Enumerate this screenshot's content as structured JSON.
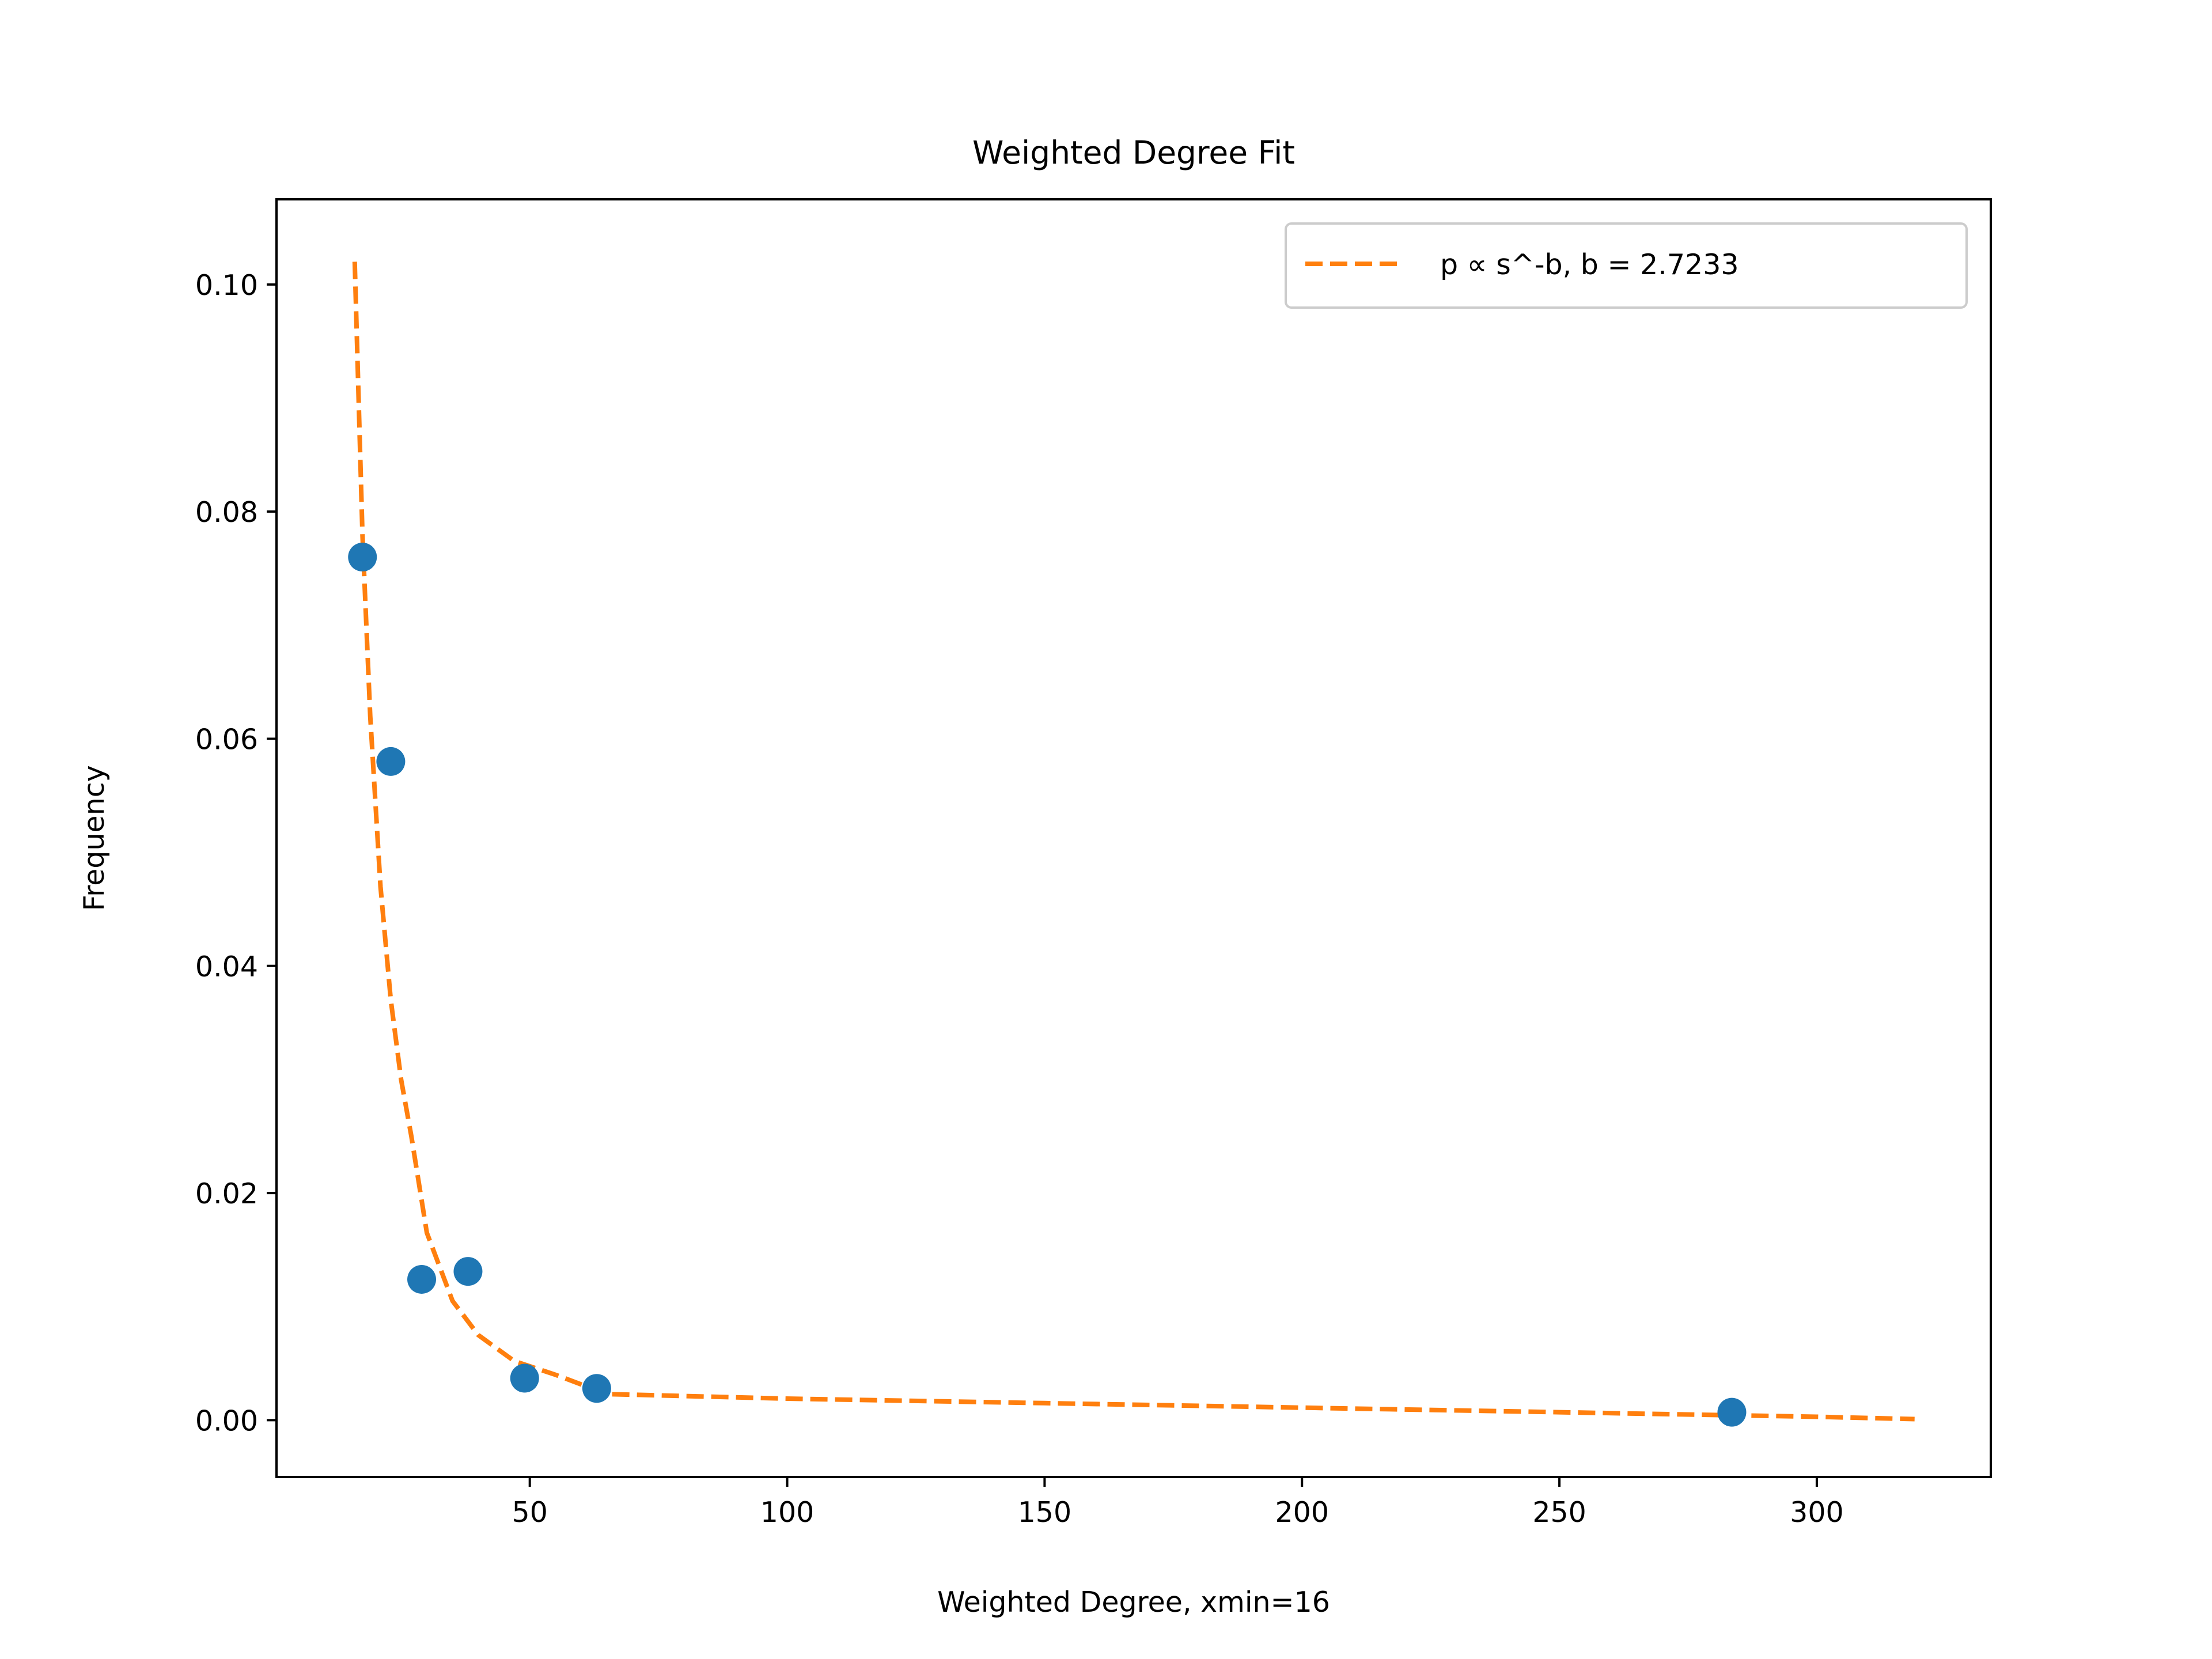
{
  "chart_data": {
    "type": "scatter",
    "title": "Weighted Degree Fit",
    "xlabel": "Weighted Degree, xmin=16",
    "ylabel": "Frequency",
    "xlim": [
      0.8,
      333.8
    ],
    "ylim": [
      -0.005,
      0.1075
    ],
    "x_ticks": [
      50,
      100,
      150,
      200,
      250,
      300
    ],
    "x_tick_labels": [
      "50",
      "100",
      "150",
      "200",
      "250",
      "300"
    ],
    "y_ticks": [
      0.0,
      0.02,
      0.04,
      0.06,
      0.08,
      0.1
    ],
    "y_tick_labels": [
      "0.00",
      "0.02",
      "0.04",
      "0.06",
      "0.08",
      "0.10"
    ],
    "grid": false,
    "legend_position": "top-right",
    "series": [
      {
        "kind": "scatter",
        "color": "#1f77b4",
        "points": [
          {
            "x": 17.5,
            "y": 0.076
          },
          {
            "x": 23,
            "y": 0.058
          },
          {
            "x": 29,
            "y": 0.0124
          },
          {
            "x": 38,
            "y": 0.0131
          },
          {
            "x": 49,
            "y": 0.0037
          },
          {
            "x": 63,
            "y": 0.0028
          },
          {
            "x": 283.5,
            "y": 0.0007
          }
        ]
      },
      {
        "kind": "line",
        "name": "p ∝ s^-b, b = 2.7233",
        "color": "#ff7f0e",
        "dashed": true,
        "points": [
          {
            "x": 16,
            "y": 0.102
          },
          {
            "x": 17.5,
            "y": 0.078
          },
          {
            "x": 19,
            "y": 0.062
          },
          {
            "x": 21,
            "y": 0.047
          },
          {
            "x": 23,
            "y": 0.037
          },
          {
            "x": 25,
            "y": 0.03
          },
          {
            "x": 27,
            "y": 0.025
          },
          {
            "x": 30,
            "y": 0.0165
          },
          {
            "x": 35,
            "y": 0.0105
          },
          {
            "x": 40,
            "y": 0.0075
          },
          {
            "x": 47,
            "y": 0.0052
          },
          {
            "x": 55,
            "y": 0.004
          },
          {
            "x": 65,
            "y": 0.0023
          },
          {
            "x": 100,
            "y": 0.0019
          },
          {
            "x": 150,
            "y": 0.0015
          },
          {
            "x": 200,
            "y": 0.0011
          },
          {
            "x": 250,
            "y": 0.0007
          },
          {
            "x": 300,
            "y": 0.0003
          },
          {
            "x": 319,
            "y": 0.0001
          }
        ]
      }
    ]
  }
}
